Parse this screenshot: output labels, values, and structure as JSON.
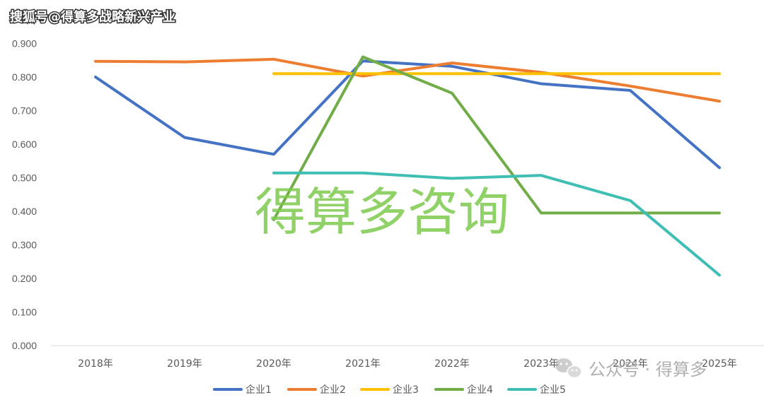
{
  "watermarks": {
    "top_left": "搜狐号@得算多战略新兴产业",
    "center": "得算多咨询",
    "bottom_right": "公众号 · 得算多",
    "bottom_right_icon": "wechat-icon"
  },
  "chart_data": {
    "type": "line",
    "categories": [
      "2018年",
      "2019年",
      "2020年",
      "2021年",
      "2022年",
      "2023年",
      "2024年",
      "2025年"
    ],
    "ylim": [
      0,
      1.0
    ],
    "yticks": [
      "0.000",
      "0.100",
      "0.200",
      "0.300",
      "0.400",
      "0.500",
      "0.600",
      "0.700",
      "0.800",
      "0.900"
    ],
    "grid": false,
    "legend_position": "bottom",
    "series": [
      {
        "name": "企业1",
        "color": "#4472c4",
        "values": [
          0.8,
          0.62,
          0.57,
          0.848,
          0.832,
          0.78,
          0.76,
          0.53
        ]
      },
      {
        "name": "企业2",
        "color": "#ed7d31",
        "values": [
          0.847,
          0.845,
          0.853,
          0.803,
          0.842,
          0.814,
          0.773,
          0.728
        ]
      },
      {
        "name": "企业3",
        "color": "#ffc000",
        "values": [
          null,
          null,
          0.81,
          0.81,
          0.81,
          0.81,
          0.81,
          0.81
        ]
      },
      {
        "name": "企业4",
        "color": "#70ad47",
        "values": [
          null,
          null,
          0.375,
          0.86,
          0.752,
          0.395,
          0.395,
          0.395
        ]
      },
      {
        "name": "企业5",
        "color": "#3fbfb4",
        "values": [
          null,
          null,
          0.514,
          0.514,
          0.498,
          0.507,
          0.432,
          0.21
        ]
      }
    ]
  }
}
